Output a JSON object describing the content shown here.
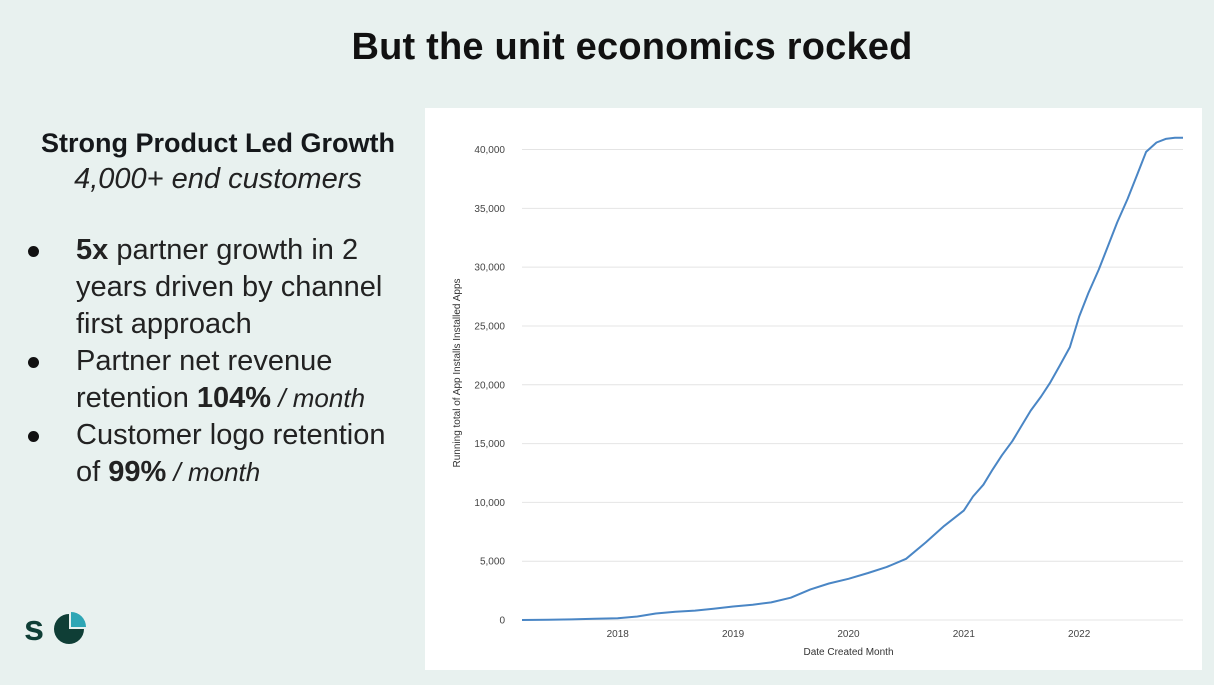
{
  "slide": {
    "title": "But the unit economics rocked",
    "subhead": "Strong Product Led Growth",
    "subtag": "4,000+ end customers",
    "bullets": [
      {
        "bold": "5x",
        "rest": " partner growth in 2 years driven by channel first approach"
      },
      {
        "pre": "Partner net revenue retention ",
        "bold": "104%",
        "italic": " / month"
      },
      {
        "pre": "Customer logo retention of ",
        "bold": "99%",
        "italic": " / month"
      }
    ],
    "logo": {
      "letter": "s",
      "icon": "pie-chart-icon",
      "color": "#0f3e36",
      "accent": "#2ea6b5"
    }
  },
  "chart_data": {
    "type": "line",
    "title": "",
    "xlabel": "Date Created Month",
    "ylabel": "Running total of App Installs Installed Apps",
    "xlim": [
      2017.17,
      2022.9
    ],
    "ylim": [
      0,
      42000
    ],
    "yticks": [
      0,
      5000,
      10000,
      15000,
      20000,
      25000,
      30000,
      35000,
      40000
    ],
    "ytick_labels": [
      "0",
      "5,000",
      "10,000",
      "15,000",
      "20,000",
      "25,000",
      "30,000",
      "35,000",
      "40,000"
    ],
    "xticks": [
      2018,
      2019,
      2020,
      2021,
      2022
    ],
    "xtick_labels": [
      "2018",
      "2019",
      "2020",
      "2021",
      "2022"
    ],
    "grid": "horizontal",
    "color": "#4a86c5",
    "series": [
      {
        "x": [
          2017.17,
          2017.4,
          2017.6,
          2017.8,
          2018.0,
          2018.17,
          2018.33,
          2018.5,
          2018.67,
          2018.83,
          2019.0,
          2019.17,
          2019.33,
          2019.5,
          2019.67,
          2019.83,
          2020.0,
          2020.17,
          2020.33,
          2020.5,
          2020.67,
          2020.83,
          2021.0,
          2021.08,
          2021.17,
          2021.25,
          2021.33,
          2021.42,
          2021.5,
          2021.58,
          2021.67,
          2021.75,
          2021.83,
          2021.92,
          2022.0,
          2022.08,
          2022.17,
          2022.25,
          2022.33,
          2022.42,
          2022.5,
          2022.58,
          2022.67,
          2022.75,
          2022.83,
          2022.9
        ],
        "y": [
          0,
          20,
          50,
          100,
          150,
          300,
          550,
          700,
          800,
          950,
          1150,
          1300,
          1500,
          1900,
          2600,
          3100,
          3500,
          4000,
          4500,
          5200,
          6600,
          8000,
          9300,
          10500,
          11500,
          12800,
          14000,
          15200,
          16500,
          17800,
          19000,
          20200,
          21600,
          23200,
          25800,
          27800,
          29800,
          31800,
          33800,
          35800,
          37800,
          39800,
          40600,
          40900,
          41000,
          41000
        ]
      }
    ]
  }
}
